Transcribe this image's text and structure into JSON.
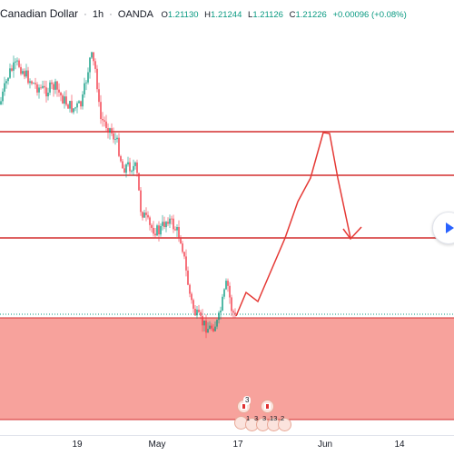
{
  "header": {
    "symbol": "Canadian Dollar",
    "separator": "·",
    "interval": "1h",
    "broker": "OANDA",
    "open_key": "O",
    "open": "1.21130",
    "high_key": "H",
    "high": "1.21244",
    "low_key": "L",
    "low": "1.21126",
    "close_key": "C",
    "close": "1.21226",
    "change": "+0.00096 (+0.08%)"
  },
  "time_axis": {
    "labels": [
      "19",
      "May",
      "17",
      "Jun",
      "14"
    ]
  },
  "events": {
    "top_count": "3",
    "numbers": [
      "1",
      "3",
      "3",
      "13",
      "2"
    ]
  },
  "colors": {
    "up_candle": "#089981",
    "down_candle": "#f23645",
    "level_line": "#d32f2f",
    "zone_fill": "#f7a29c",
    "projection": "#e53935",
    "accent": "#2962ff"
  },
  "icons": {
    "navigate": "chevron-right-icon",
    "event": "canada-flag-icon"
  },
  "chart_data": {
    "type": "candlestick",
    "title": "Canadian Dollar · 1h · OANDA",
    "xlabel": "",
    "ylabel": "",
    "x_ticks": [
      "19",
      "May",
      "17",
      "Jun",
      "14"
    ],
    "ohlc_last": {
      "open": 1.2113,
      "high": 1.21244,
      "low": 1.21126,
      "close": 1.21226
    },
    "horizontal_levels": 3,
    "demand_zone": true,
    "projected_path": true,
    "grid": false
  }
}
